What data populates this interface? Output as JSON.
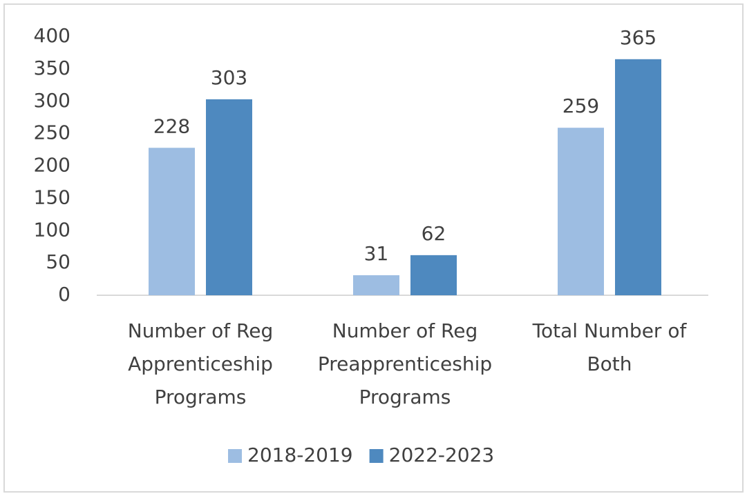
{
  "chart_data": {
    "type": "bar",
    "categories": [
      "Number of Reg Apprenticeship Programs",
      "Number of Reg Preapprenticeship Programs",
      "Total Number of Both"
    ],
    "series": [
      {
        "name": "2018-2019",
        "color": "#9dbde2",
        "values": [
          228,
          31,
          259
        ]
      },
      {
        "name": "2022-2023",
        "color": "#4e89bf",
        "values": [
          303,
          62,
          365
        ]
      }
    ],
    "ylim": [
      0,
      400
    ],
    "yticks": [
      0,
      50,
      100,
      150,
      200,
      250,
      300,
      350,
      400
    ],
    "grid": false,
    "legend": "bottom"
  }
}
